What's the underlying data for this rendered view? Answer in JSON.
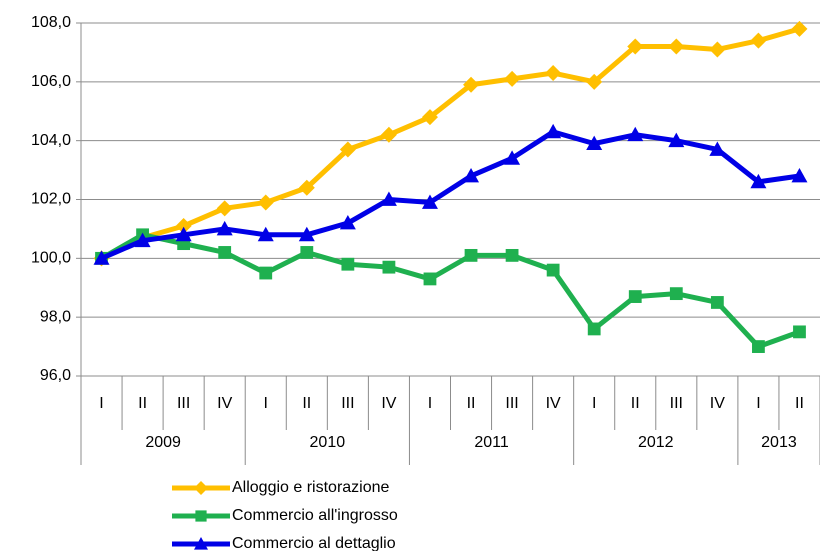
{
  "chart_data": {
    "type": "line",
    "groups": [
      {
        "label": "2009",
        "categories": [
          "I",
          "II",
          "III",
          "IV"
        ]
      },
      {
        "label": "2010",
        "categories": [
          "I",
          "II",
          "III",
          "IV"
        ]
      },
      {
        "label": "2011",
        "categories": [
          "I",
          "II",
          "III",
          "IV"
        ]
      },
      {
        "label": "2012",
        "categories": [
          "I",
          "II",
          "III",
          "IV"
        ]
      },
      {
        "label": "2013",
        "categories": [
          "I",
          "II"
        ]
      }
    ],
    "series": [
      {
        "name": "Alloggio e ristorazione",
        "color": "#ffbf00",
        "marker": "diamond",
        "values": [
          100.0,
          100.7,
          101.1,
          101.7,
          101.9,
          102.4,
          103.7,
          104.2,
          104.8,
          105.9,
          106.1,
          106.3,
          106.0,
          107.2,
          107.2,
          107.1,
          107.4,
          107.8
        ]
      },
      {
        "name": "Commercio all'ingrosso",
        "color": "#1fb04f",
        "marker": "square",
        "values": [
          100.0,
          100.8,
          100.5,
          100.2,
          99.5,
          100.2,
          99.8,
          99.7,
          99.3,
          100.1,
          100.1,
          99.6,
          97.6,
          98.7,
          98.8,
          98.5,
          97.0,
          97.5
        ]
      },
      {
        "name": "Commercio al dettaglio",
        "color": "#0000e6",
        "marker": "triangle",
        "values": [
          100.0,
          100.6,
          100.8,
          101.0,
          100.8,
          100.8,
          101.2,
          102.0,
          101.9,
          102.8,
          103.4,
          104.3,
          103.9,
          104.2,
          104.0,
          103.7,
          102.6,
          102.8
        ]
      }
    ],
    "ylim": [
      96,
      108
    ],
    "yticks": [
      {
        "value": 96,
        "label": "96,0"
      },
      {
        "value": 98,
        "label": "98,0"
      },
      {
        "value": 100,
        "label": "100,0"
      },
      {
        "value": 102,
        "label": "102,0"
      },
      {
        "value": 104,
        "label": "104,0"
      },
      {
        "value": 106,
        "label": "106,0"
      },
      {
        "value": 108,
        "label": "108,0"
      }
    ],
    "grid": true,
    "legend": "bottom"
  }
}
